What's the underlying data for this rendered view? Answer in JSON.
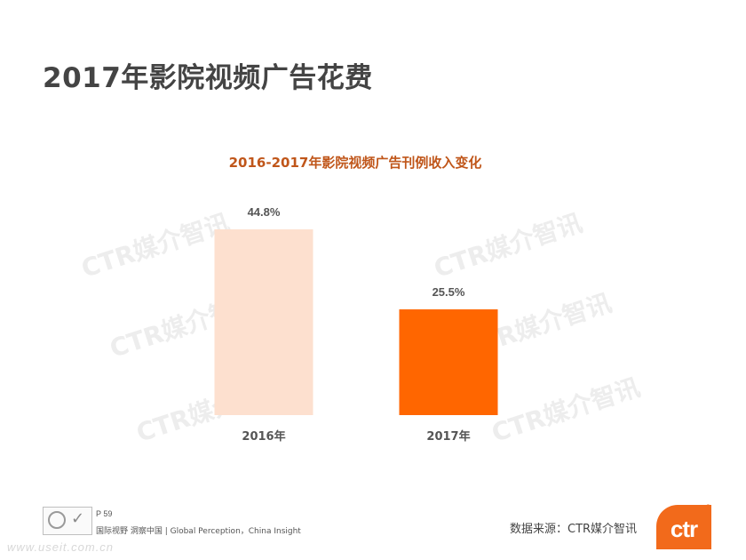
{
  "page": {
    "title": "2017年影院视频广告花费",
    "page_number": "P 59",
    "tagline": "国际视野  洞察中国 |  Global Perception，China Insight",
    "source": "数据来源：CTR媒介智讯",
    "logo_text": "ctr",
    "registered_mark": "®",
    "site_watermark": "www.useit.com.cn"
  },
  "watermark_text": "CTR媒介智讯",
  "colors": {
    "title": "#444444",
    "chart_title": "#c0561a",
    "bar_2016": "#fde0cf",
    "bar_2017": "#ff6600",
    "label": "#555555",
    "brand": "#f26a1b"
  },
  "chart_data": {
    "type": "bar",
    "title": "2016-2017年影院视频广告刊例收入变化",
    "categories": [
      "2016年",
      "2017年"
    ],
    "values": [
      44.8,
      25.5
    ],
    "value_labels": [
      "44.8%",
      "25.5%"
    ],
    "bar_colors": [
      "#fde0cf",
      "#ff6600"
    ],
    "xlabel": "",
    "ylabel": "",
    "ylim": [
      0,
      44.8
    ],
    "grid": false,
    "legend": "none"
  }
}
